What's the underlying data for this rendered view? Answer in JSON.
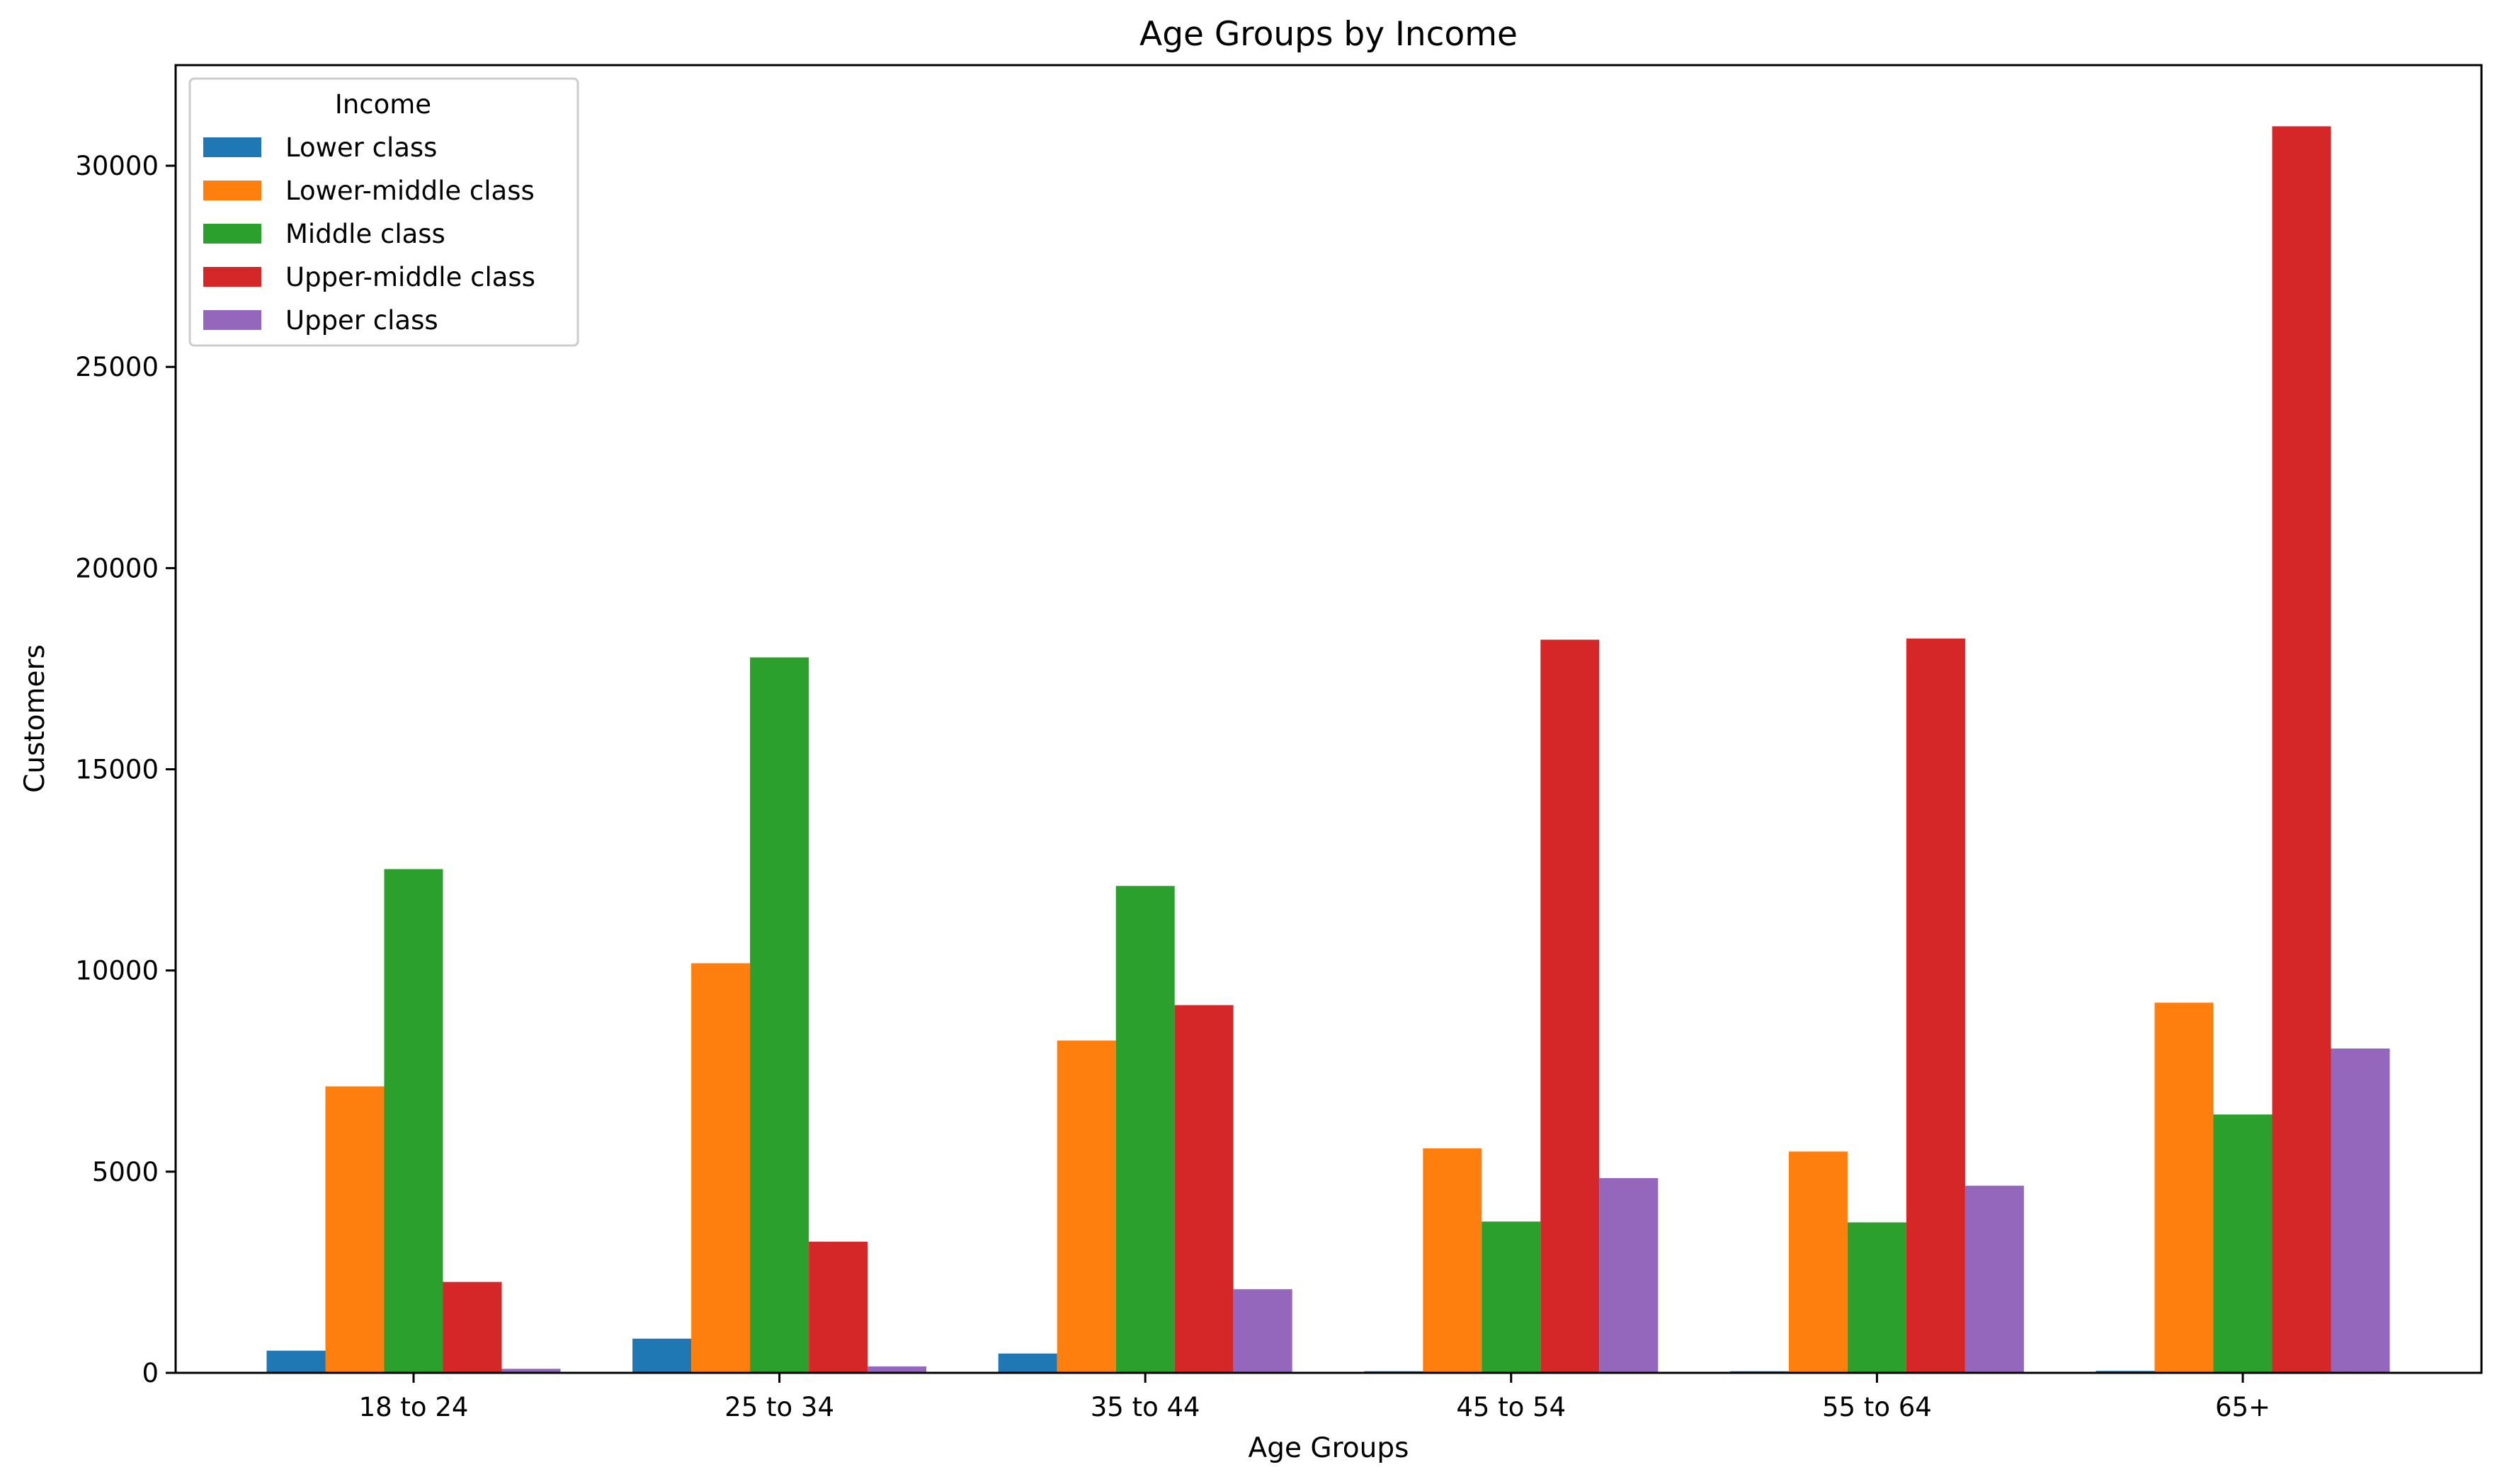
{
  "chart_data": {
    "type": "bar",
    "title": "Age Groups by Income",
    "xlabel": "Age Groups",
    "ylabel": "Customers",
    "categories": [
      "18 to 24",
      "25 to 34",
      "35 to 44",
      "45 to 54",
      "55 to 64",
      "65+"
    ],
    "ylim": [
      0,
      32500
    ],
    "yticks": [
      0,
      5000,
      10000,
      15000,
      20000,
      25000,
      30000
    ],
    "grid": false,
    "legend": {
      "title": "Income",
      "position": "upper-left"
    },
    "series": [
      {
        "name": "Lower class",
        "color": "#1f77b4",
        "values": [
          550,
          850,
          480,
          40,
          40,
          50
        ]
      },
      {
        "name": "Lower-middle class",
        "color": "#ff7f0e",
        "values": [
          7120,
          10180,
          8260,
          5580,
          5500,
          9200
        ]
      },
      {
        "name": "Middle class",
        "color": "#2ca02c",
        "values": [
          12520,
          17780,
          12100,
          3760,
          3740,
          6420
        ]
      },
      {
        "name": "Upper-middle class",
        "color": "#d62728",
        "values": [
          2260,
          3260,
          9140,
          18220,
          18250,
          30980
        ]
      },
      {
        "name": "Upper class",
        "color": "#9467bd",
        "values": [
          100,
          160,
          2080,
          4840,
          4650,
          8060
        ]
      }
    ]
  }
}
